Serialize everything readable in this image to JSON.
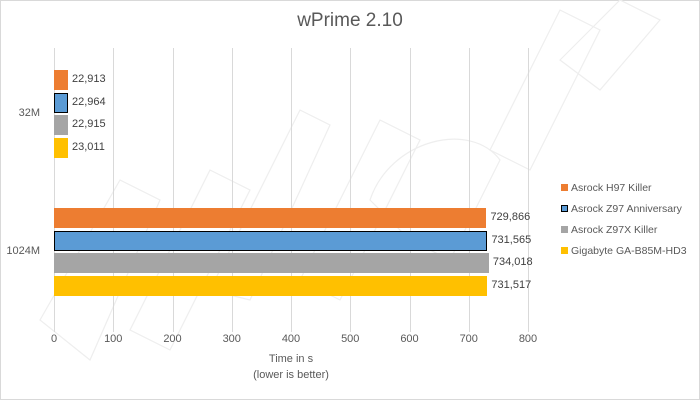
{
  "chart_data": {
    "type": "bar",
    "orientation": "horizontal",
    "title": "wPrime 2.10",
    "xlabel": "Time in s",
    "xlabel_sub": "(lower is better)",
    "ylabel": "",
    "xlim": [
      0,
      800
    ],
    "xticks": [
      "0",
      "100",
      "200",
      "300",
      "400",
      "500",
      "600",
      "700",
      "800"
    ],
    "grid": true,
    "legend_position": "right",
    "categories": [
      "32M",
      "1024M"
    ],
    "series": [
      {
        "name": "Asrock H97 Killer",
        "color": "#ED7D31",
        "values": [
          22.913,
          729.866
        ],
        "labels": [
          "22,913",
          "729,866"
        ]
      },
      {
        "name": "Asrock Z97 Anniversary",
        "color": "#5B9BD5",
        "outlined": true,
        "values": [
          22.964,
          731.565
        ],
        "labels": [
          "22,964",
          "731,565"
        ]
      },
      {
        "name": "Asrock Z97X Killer",
        "color": "#A5A5A5",
        "values": [
          22.915,
          734.018
        ],
        "labels": [
          "22,915",
          "734,018"
        ]
      },
      {
        "name": "Gigabyte GA-B85M-HD3",
        "color": "#FFC000",
        "values": [
          23.011,
          731.517
        ],
        "labels": [
          "23,011",
          "731,517"
        ]
      }
    ]
  }
}
